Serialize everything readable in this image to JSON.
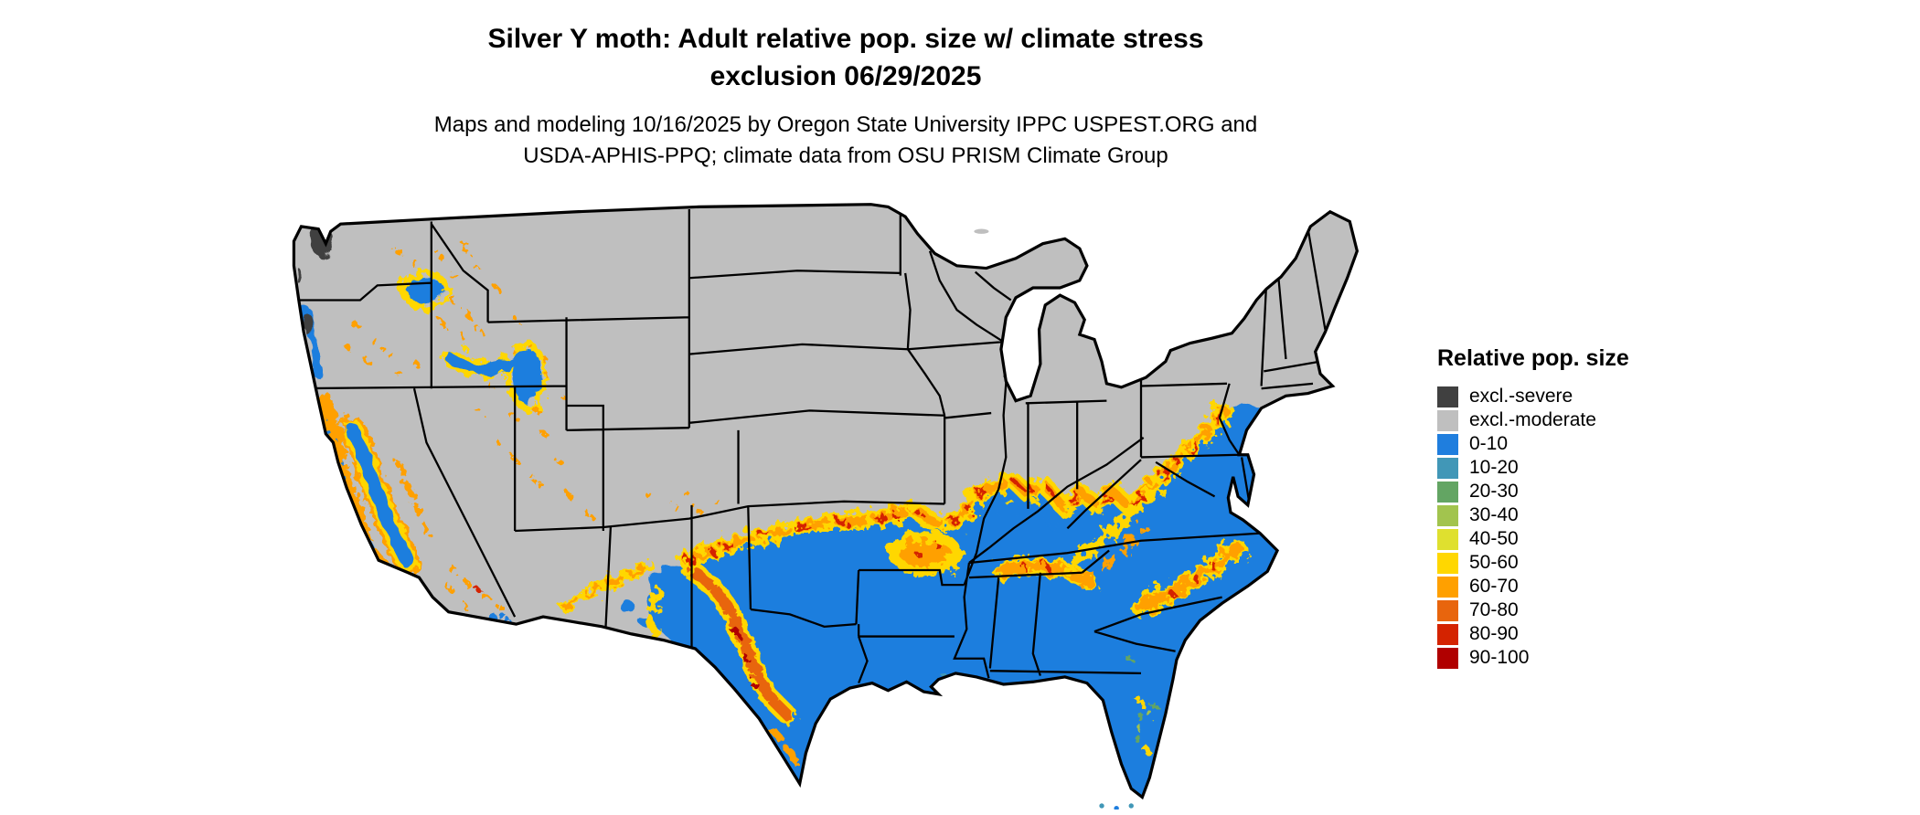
{
  "header": {
    "title_line1": "Silver Y moth: Adult relative pop. size w/ climate stress",
    "title_line2": "exclusion 06/29/2025",
    "subtitle_line1": "Maps and modeling 10/16/2025 by Oregon State University IPPC USPEST.ORG and",
    "subtitle_line2": "USDA-APHIS-PPQ; climate data from OSU PRISM Climate Group"
  },
  "legend": {
    "title": "Relative pop. size",
    "items": [
      {
        "label": "excl.-severe",
        "color": "#404040"
      },
      {
        "label": "excl.-moderate",
        "color": "#bfbfbf"
      },
      {
        "label": "0-10",
        "color": "#1f7ede"
      },
      {
        "label": "10-20",
        "color": "#4197b7"
      },
      {
        "label": "20-30",
        "color": "#63a563"
      },
      {
        "label": "30-40",
        "color": "#a2c44e"
      },
      {
        "label": "40-50",
        "color": "#dfe02f"
      },
      {
        "label": "50-60",
        "color": "#ffd700"
      },
      {
        "label": "60-70",
        "color": "#ffa000"
      },
      {
        "label": "70-80",
        "color": "#e8650d"
      },
      {
        "label": "80-90",
        "color": "#d42300"
      },
      {
        "label": "90-100",
        "color": "#b00000"
      }
    ]
  },
  "map": {
    "region": "Contiguous United States",
    "border_color": "#000000",
    "water_color": "#ffffff"
  }
}
